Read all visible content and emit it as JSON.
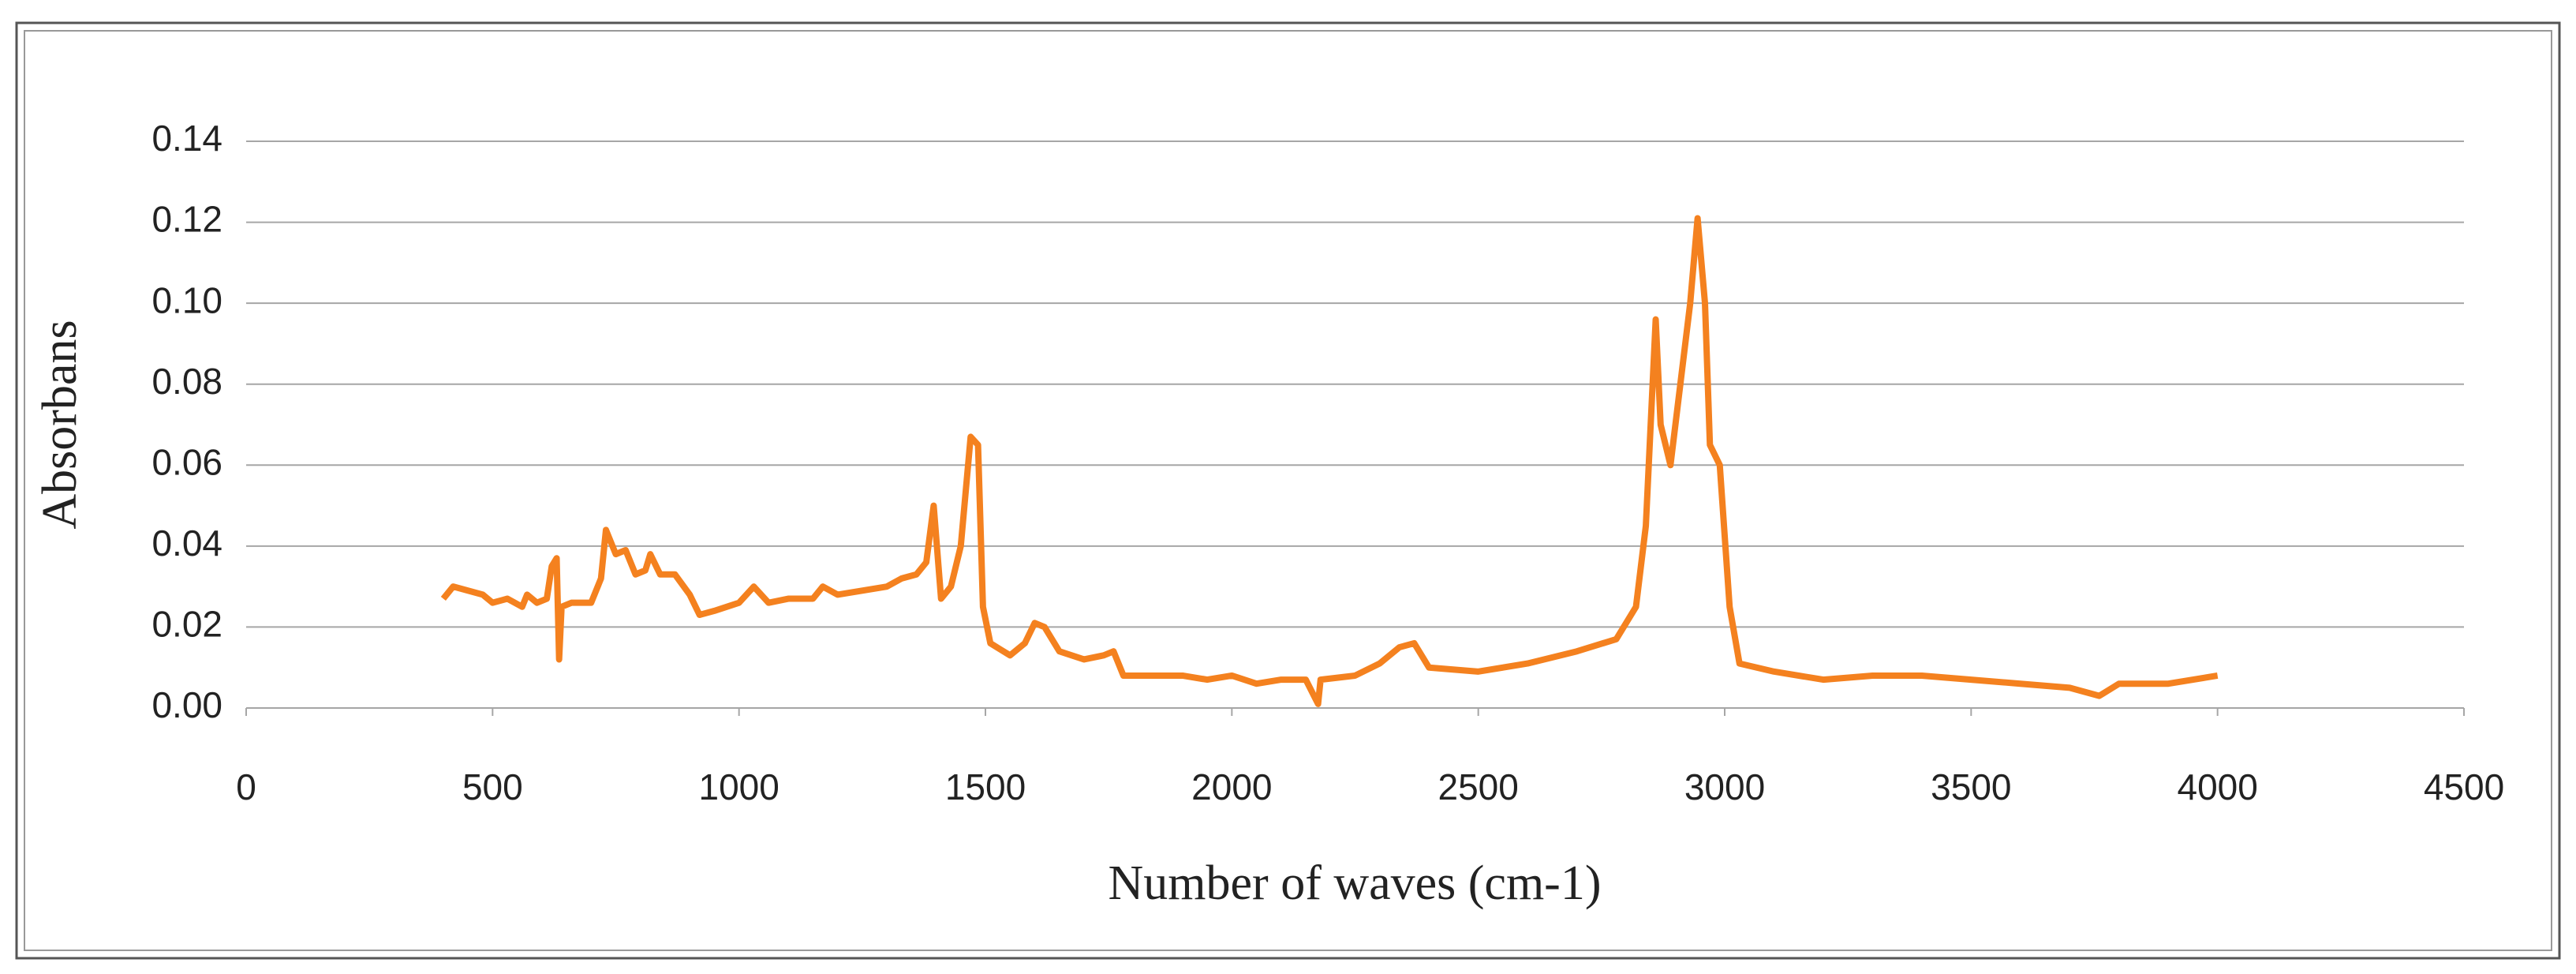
{
  "chart_data": {
    "type": "line",
    "xlabel": "Number of waves (cm-1)",
    "ylabel": "Absorbans",
    "xlim": [
      0,
      4500
    ],
    "xticks": [
      0,
      500,
      1000,
      1500,
      2000,
      2500,
      3000,
      3500,
      4000,
      4500
    ],
    "ylim": [
      0,
      0.14
    ],
    "yticks": [
      {
        "value": 0,
        "label": "0.00"
      },
      0.02,
      0.04,
      0.06,
      0.08,
      {
        "value": 0.1,
        "label": "0.10"
      },
      0.12,
      0.14
    ],
    "grid": true,
    "series": [
      {
        "color": "#f4811f",
        "x": [
          400,
          420,
          450,
          480,
          500,
          530,
          560,
          570,
          590,
          610,
          620,
          630,
          635,
          640,
          660,
          700,
          720,
          730,
          750,
          770,
          790,
          810,
          820,
          840,
          870,
          900,
          920,
          950,
          1000,
          1030,
          1060,
          1100,
          1150,
          1170,
          1200,
          1250,
          1300,
          1330,
          1360,
          1380,
          1395,
          1410,
          1430,
          1450,
          1470,
          1485,
          1495,
          1510,
          1550,
          1580,
          1600,
          1620,
          1650,
          1700,
          1740,
          1760,
          1780,
          1850,
          1900,
          1950,
          2000,
          2050,
          2100,
          2150,
          2175,
          2180,
          2250,
          2300,
          2340,
          2370,
          2400,
          2500,
          2600,
          2700,
          2780,
          2820,
          2840,
          2860,
          2870,
          2890,
          2910,
          2930,
          2945,
          2960,
          2970,
          2990,
          3010,
          3030,
          3100,
          3200,
          3300,
          3400,
          3500,
          3600,
          3700,
          3760,
          3800,
          3900,
          4000
        ],
        "values": [
          0.027,
          0.03,
          0.029,
          0.028,
          0.026,
          0.027,
          0.025,
          0.028,
          0.026,
          0.027,
          0.035,
          0.037,
          0.012,
          0.025,
          0.026,
          0.026,
          0.032,
          0.044,
          0.038,
          0.039,
          0.033,
          0.034,
          0.038,
          0.033,
          0.033,
          0.028,
          0.023,
          0.024,
          0.026,
          0.03,
          0.026,
          0.027,
          0.027,
          0.03,
          0.028,
          0.029,
          0.03,
          0.032,
          0.033,
          0.036,
          0.05,
          0.027,
          0.03,
          0.04,
          0.067,
          0.065,
          0.025,
          0.016,
          0.013,
          0.016,
          0.021,
          0.02,
          0.014,
          0.012,
          0.013,
          0.014,
          0.008,
          0.008,
          0.008,
          0.007,
          0.008,
          0.006,
          0.007,
          0.007,
          0.001,
          0.007,
          0.008,
          0.011,
          0.015,
          0.016,
          0.01,
          0.009,
          0.011,
          0.014,
          0.017,
          0.025,
          0.045,
          0.096,
          0.07,
          0.06,
          0.08,
          0.1,
          0.121,
          0.1,
          0.065,
          0.06,
          0.025,
          0.011,
          0.009,
          0.007,
          0.008,
          0.008,
          0.007,
          0.006,
          0.005,
          0.003,
          0.006,
          0.006,
          0.008
        ]
      }
    ]
  }
}
